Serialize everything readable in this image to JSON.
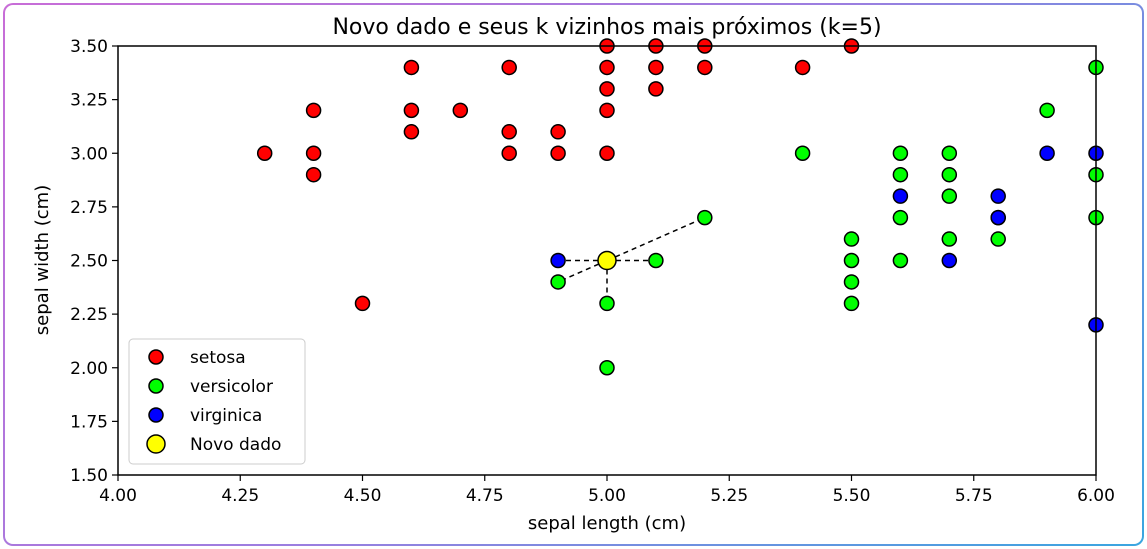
{
  "chart_data": {
    "type": "scatter",
    "title": "Novo dado e seus k vizinhos mais próximos (k=5)",
    "xlabel": "sepal length (cm)",
    "ylabel": "sepal width (cm)",
    "xlim": [
      4.0,
      6.0
    ],
    "ylim": [
      1.5,
      3.5
    ],
    "x_ticks": [
      "4.00",
      "4.25",
      "4.50",
      "4.75",
      "5.00",
      "5.25",
      "5.50",
      "5.75",
      "6.00"
    ],
    "y_ticks": [
      "1.50",
      "1.75",
      "2.00",
      "2.25",
      "2.50",
      "2.75",
      "3.00",
      "3.25",
      "3.50"
    ],
    "grid": false,
    "legend_position": "lower-left",
    "series": [
      {
        "name": "setosa",
        "color": "#ff0000",
        "points": [
          [
            4.3,
            3.0
          ],
          [
            4.4,
            3.2
          ],
          [
            4.4,
            3.0
          ],
          [
            4.4,
            2.9
          ],
          [
            4.5,
            2.3
          ],
          [
            4.6,
            3.4
          ],
          [
            4.6,
            3.2
          ],
          [
            4.6,
            3.1
          ],
          [
            4.7,
            3.2
          ],
          [
            4.8,
            3.4
          ],
          [
            4.8,
            3.1
          ],
          [
            4.8,
            3.0
          ],
          [
            4.9,
            3.1
          ],
          [
            4.9,
            3.0
          ],
          [
            5.0,
            3.5
          ],
          [
            5.0,
            3.4
          ],
          [
            5.0,
            3.3
          ],
          [
            5.0,
            3.2
          ],
          [
            5.0,
            3.0
          ],
          [
            5.1,
            3.5
          ],
          [
            5.1,
            3.4
          ],
          [
            5.1,
            3.3
          ],
          [
            5.2,
            3.5
          ],
          [
            5.2,
            3.4
          ],
          [
            5.4,
            3.4
          ],
          [
            5.5,
            3.5
          ]
        ]
      },
      {
        "name": "versicolor",
        "color": "#00ff00",
        "points": [
          [
            4.9,
            2.4
          ],
          [
            5.0,
            2.3
          ],
          [
            5.0,
            2.0
          ],
          [
            5.1,
            2.5
          ],
          [
            5.2,
            2.7
          ],
          [
            5.4,
            3.0
          ],
          [
            5.5,
            2.6
          ],
          [
            5.5,
            2.5
          ],
          [
            5.5,
            2.4
          ],
          [
            5.5,
            2.3
          ],
          [
            5.6,
            3.0
          ],
          [
            5.6,
            2.9
          ],
          [
            5.6,
            2.7
          ],
          [
            5.6,
            2.5
          ],
          [
            5.7,
            3.0
          ],
          [
            5.7,
            2.9
          ],
          [
            5.7,
            2.8
          ],
          [
            5.7,
            2.6
          ],
          [
            5.8,
            2.7
          ],
          [
            5.8,
            2.6
          ],
          [
            5.9,
            3.2
          ],
          [
            6.0,
            3.4
          ],
          [
            6.0,
            2.9
          ],
          [
            6.0,
            2.7
          ]
        ]
      },
      {
        "name": "virginica",
        "color": "#0000ff",
        "points": [
          [
            4.9,
            2.5
          ],
          [
            5.6,
            2.8
          ],
          [
            5.7,
            2.5
          ],
          [
            5.8,
            2.8
          ],
          [
            5.8,
            2.7
          ],
          [
            5.9,
            3.0
          ],
          [
            6.0,
            3.0
          ],
          [
            6.0,
            2.2
          ]
        ]
      },
      {
        "name": "Novo dado",
        "color": "#ffff00",
        "points": [
          [
            5.0,
            2.5
          ]
        ]
      }
    ],
    "neighbor_lines": [
      [
        4.9,
        2.5
      ],
      [
        5.1,
        2.5
      ],
      [
        5.0,
        2.3
      ],
      [
        4.9,
        2.4
      ],
      [
        5.2,
        2.7
      ]
    ]
  }
}
